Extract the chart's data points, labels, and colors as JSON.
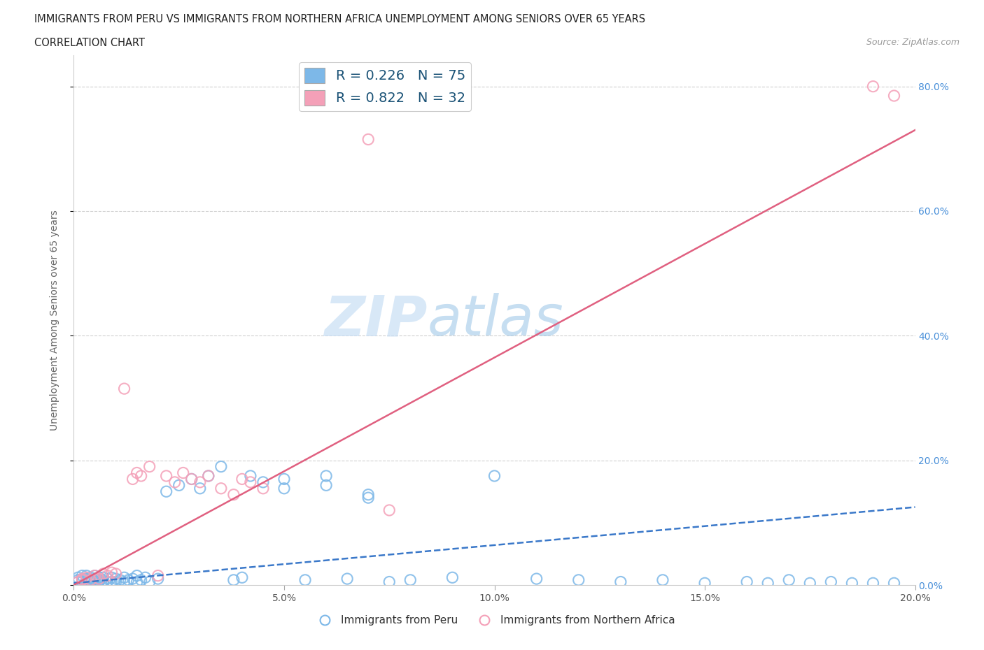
{
  "title_line1": "IMMIGRANTS FROM PERU VS IMMIGRANTS FROM NORTHERN AFRICA UNEMPLOYMENT AMONG SENIORS OVER 65 YEARS",
  "title_line2": "CORRELATION CHART",
  "source": "Source: ZipAtlas.com",
  "ylabel": "Unemployment Among Seniors over 65 years",
  "xlim": [
    0.0,
    0.2
  ],
  "ylim": [
    0.0,
    0.85
  ],
  "xticks": [
    0.0,
    0.05,
    0.1,
    0.15,
    0.2
  ],
  "yticks": [
    0.0,
    0.2,
    0.4,
    0.6,
    0.8
  ],
  "ytick_labels": [
    "0.0%",
    "20.0%",
    "40.0%",
    "60.0%",
    "80.0%"
  ],
  "xtick_labels": [
    "0.0%",
    "5.0%",
    "10.0%",
    "15.0%",
    "20.0%"
  ],
  "peru_color": "#7db8e8",
  "na_color": "#f4a0b8",
  "peru_line_color": "#3a78c9",
  "na_line_color": "#e06080",
  "peru_label": "Immigrants from Peru",
  "na_label": "Immigrants from Northern Africa",
  "peru_R": "0.226",
  "peru_N": "75",
  "na_R": "0.822",
  "na_N": "32",
  "watermark_zip": "ZIP",
  "watermark_atlas": "atlas",
  "background_color": "#ffffff",
  "grid_color": "#d0d0d0",
  "peru_line_x": [
    0.0,
    0.2
  ],
  "peru_line_y": [
    0.003,
    0.125
  ],
  "na_line_x": [
    0.0,
    0.2
  ],
  "na_line_y": [
    0.0,
    0.73
  ],
  "peru_x": [
    0.001,
    0.001,
    0.001,
    0.002,
    0.002,
    0.002,
    0.003,
    0.003,
    0.003,
    0.003,
    0.004,
    0.004,
    0.004,
    0.005,
    0.005,
    0.005,
    0.005,
    0.006,
    0.006,
    0.006,
    0.007,
    0.007,
    0.007,
    0.008,
    0.008,
    0.009,
    0.009,
    0.01,
    0.01,
    0.011,
    0.012,
    0.012,
    0.013,
    0.014,
    0.015,
    0.015,
    0.016,
    0.017,
    0.018,
    0.02,
    0.022,
    0.025,
    0.028,
    0.03,
    0.032,
    0.035,
    0.038,
    0.04,
    0.042,
    0.045,
    0.05,
    0.055,
    0.06,
    0.065,
    0.07,
    0.075,
    0.08,
    0.09,
    0.1,
    0.11,
    0.12,
    0.13,
    0.14,
    0.15,
    0.16,
    0.165,
    0.17,
    0.175,
    0.18,
    0.185,
    0.19,
    0.195,
    0.05,
    0.06,
    0.07
  ],
  "peru_y": [
    0.005,
    0.008,
    0.012,
    0.005,
    0.01,
    0.015,
    0.003,
    0.007,
    0.01,
    0.015,
    0.005,
    0.008,
    0.012,
    0.003,
    0.006,
    0.01,
    0.015,
    0.005,
    0.008,
    0.012,
    0.003,
    0.007,
    0.012,
    0.005,
    0.01,
    0.005,
    0.012,
    0.005,
    0.01,
    0.008,
    0.005,
    0.012,
    0.008,
    0.01,
    0.005,
    0.015,
    0.008,
    0.012,
    0.005,
    0.01,
    0.15,
    0.16,
    0.17,
    0.155,
    0.175,
    0.19,
    0.008,
    0.012,
    0.175,
    0.165,
    0.17,
    0.008,
    0.16,
    0.01,
    0.145,
    0.005,
    0.008,
    0.012,
    0.175,
    0.01,
    0.008,
    0.005,
    0.008,
    0.003,
    0.005,
    0.003,
    0.008,
    0.003,
    0.005,
    0.003,
    0.003,
    0.003,
    0.155,
    0.175,
    0.14
  ],
  "na_x": [
    0.001,
    0.002,
    0.002,
    0.003,
    0.004,
    0.005,
    0.006,
    0.007,
    0.008,
    0.009,
    0.01,
    0.012,
    0.014,
    0.015,
    0.016,
    0.018,
    0.02,
    0.022,
    0.024,
    0.026,
    0.028,
    0.03,
    0.032,
    0.035,
    0.038,
    0.04,
    0.042,
    0.045,
    0.07,
    0.075,
    0.19,
    0.195
  ],
  "na_y": [
    0.005,
    0.01,
    0.008,
    0.012,
    0.008,
    0.015,
    0.01,
    0.018,
    0.015,
    0.02,
    0.018,
    0.315,
    0.17,
    0.18,
    0.175,
    0.19,
    0.015,
    0.175,
    0.165,
    0.18,
    0.17,
    0.165,
    0.175,
    0.155,
    0.145,
    0.17,
    0.165,
    0.155,
    0.715,
    0.12,
    0.8,
    0.785
  ]
}
